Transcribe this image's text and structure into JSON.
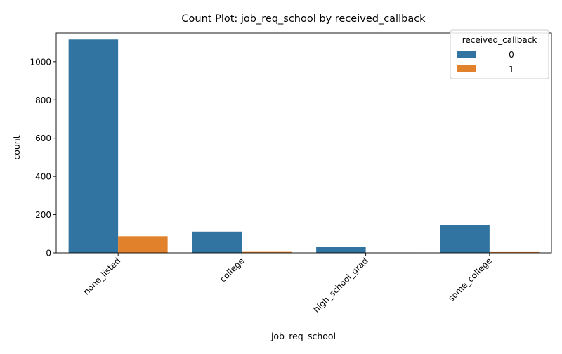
{
  "chart_data": {
    "type": "bar",
    "title": "Count Plot: job_req_school by received_callback",
    "xlabel": "job_req_school",
    "ylabel": "count",
    "categories": [
      "none_listed",
      "college",
      "high_school_grad",
      "some_college"
    ],
    "series": [
      {
        "name": "0",
        "values": [
          1116,
          111,
          30,
          146
        ],
        "color": "#3274a1"
      },
      {
        "name": "1",
        "values": [
          87,
          5,
          1,
          4
        ],
        "color": "#e1812c"
      }
    ],
    "ylim": [
      0,
      1150
    ],
    "yticks": [
      0,
      200,
      400,
      600,
      800,
      1000
    ],
    "grid": false,
    "legend": {
      "title": "received_callback",
      "placement": "top-right"
    },
    "x_tick_rotation_deg": 45
  }
}
